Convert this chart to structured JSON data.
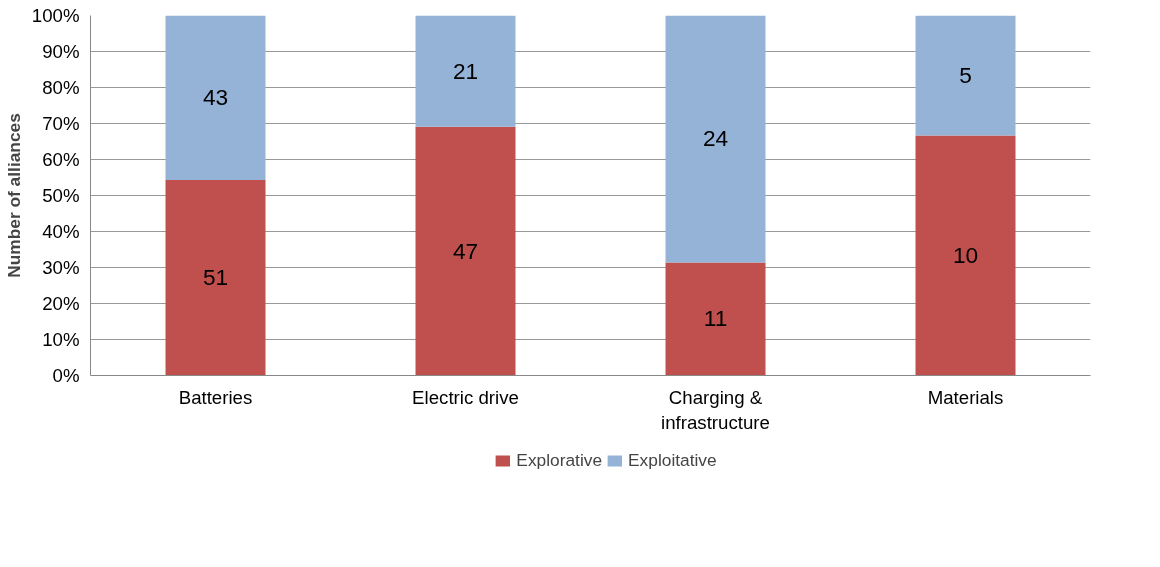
{
  "chart_data": {
    "type": "bar",
    "stacked": true,
    "ylabel": "Number of alliances",
    "categories": [
      "Batteries",
      "Electric drive",
      "Charging & infrastructure",
      "Materials"
    ],
    "series": [
      {
        "name": "Explorative",
        "color": "#c0504d",
        "values": [
          54.3,
          69.1,
          31.4,
          66.7
        ]
      },
      {
        "name": "Exploitative",
        "color": "#95b3d7",
        "values": [
          45.7,
          30.9,
          68.6,
          33.3
        ]
      }
    ],
    "annotations": [
      "51",
      "47",
      "11",
      "10",
      "43",
      "21",
      "24",
      "5"
    ],
    "ylim": [
      0,
      100
    ],
    "yticks": [
      {
        "value": 0,
        "label": "0%"
      },
      {
        "value": 10,
        "label": "10%"
      },
      {
        "value": 20,
        "label": "20%"
      },
      {
        "value": 30,
        "label": "30%"
      },
      {
        "value": 40,
        "label": "40%"
      },
      {
        "value": 50,
        "label": "50%"
      },
      {
        "value": 60,
        "label": "60%"
      },
      {
        "value": 70,
        "label": "70%"
      },
      {
        "value": 80,
        "label": "80%"
      },
      {
        "value": 90,
        "label": "90%"
      },
      {
        "value": 100,
        "label": "100%"
      }
    ],
    "grid": "y",
    "legend": "bottom"
  }
}
